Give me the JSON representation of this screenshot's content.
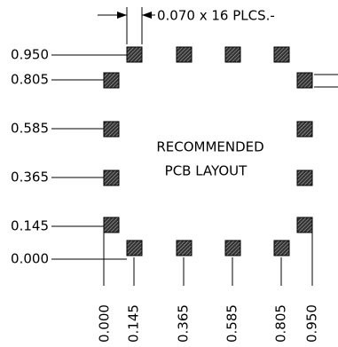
{
  "dimension_note": "0.070 x 16 PLCS.-",
  "y_labels": [
    "0.950",
    "0.805",
    "0.585",
    "0.365",
    "0.145",
    "0.000"
  ],
  "x_labels": [
    "0.000",
    "0.145",
    "0.365",
    "0.585",
    "0.805",
    "0.950"
  ],
  "center_text": [
    "RECOMMENDED",
    "PCB LAYOUT"
  ]
}
